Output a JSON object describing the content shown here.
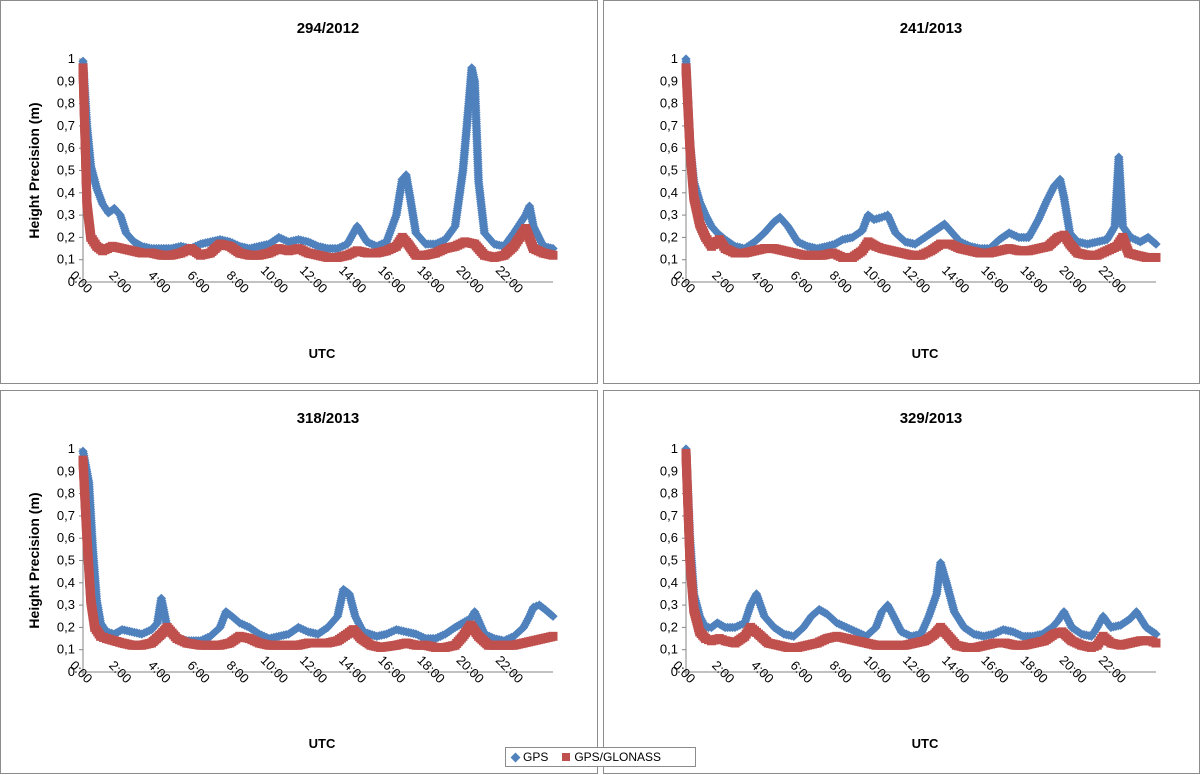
{
  "legend": {
    "gps_label": "GPS",
    "glonass_label": "GPS/GLONASS"
  },
  "colors": {
    "gps": "#4f81bd",
    "glonass": "#c0504d"
  },
  "chart_data": [
    {
      "type": "scatter",
      "title": "294/2012",
      "xlabel": "UTC",
      "ylabel": "Height Precision (m)",
      "ylim": [
        0,
        1
      ],
      "xlim": [
        0,
        24
      ],
      "yticks": [
        "0",
        "0,1",
        "0,2",
        "0,3",
        "0,4",
        "0,5",
        "0,6",
        "0,7",
        "0,8",
        "0,9",
        "1"
      ],
      "xticks": [
        "0:00",
        "2:00",
        "4:00",
        "6:00",
        "8:00",
        "10:00",
        "12:00",
        "14:00",
        "16:00",
        "18:00",
        "20:00",
        "22:00"
      ],
      "series": [
        {
          "name": "GPS",
          "x": [
            0,
            0.2,
            0.4,
            0.7,
            1,
            1.3,
            1.6,
            1.9,
            2.2,
            2.6,
            3,
            3.5,
            4,
            4.5,
            5,
            5.5,
            6,
            6.5,
            7,
            7.5,
            8,
            8.5,
            9,
            9.5,
            10,
            10.5,
            11,
            11.5,
            12,
            12.5,
            13,
            13.5,
            14,
            14.5,
            15,
            15.5,
            16,
            16.3,
            16.5,
            16.7,
            17,
            17.5,
            18,
            18.5,
            19,
            19.4,
            19.7,
            19.85,
            20,
            20.2,
            20.5,
            21,
            21.5,
            22,
            22.3,
            22.6,
            22.8,
            23,
            23.5,
            24
          ],
          "y": [
            0.99,
            0.7,
            0.52,
            0.42,
            0.35,
            0.31,
            0.33,
            0.3,
            0.22,
            0.18,
            0.16,
            0.15,
            0.15,
            0.15,
            0.16,
            0.15,
            0.17,
            0.18,
            0.19,
            0.18,
            0.16,
            0.15,
            0.16,
            0.17,
            0.2,
            0.18,
            0.19,
            0.18,
            0.16,
            0.15,
            0.15,
            0.17,
            0.25,
            0.18,
            0.16,
            0.18,
            0.3,
            0.46,
            0.48,
            0.38,
            0.22,
            0.17,
            0.17,
            0.19,
            0.25,
            0.5,
            0.8,
            0.96,
            0.9,
            0.45,
            0.22,
            0.17,
            0.16,
            0.22,
            0.26,
            0.3,
            0.34,
            0.25,
            0.16,
            0.15
          ]
        },
        {
          "name": "GPS/GLONASS",
          "x": [
            0,
            0.2,
            0.4,
            0.7,
            1,
            1.5,
            2,
            2.5,
            3,
            3.5,
            4,
            4.5,
            5,
            5.5,
            6,
            6.5,
            7,
            7.5,
            8,
            8.5,
            9,
            9.5,
            10,
            10.5,
            11,
            11.5,
            12,
            12.5,
            13,
            13.5,
            14,
            14.5,
            15,
            15.5,
            16,
            16.3,
            16.6,
            17,
            17.5,
            18,
            18.5,
            19,
            19.5,
            20,
            20.5,
            21,
            21.5,
            22,
            22.3,
            22.6,
            23,
            23.5,
            24
          ],
          "y": [
            0.96,
            0.35,
            0.2,
            0.16,
            0.14,
            0.16,
            0.15,
            0.14,
            0.13,
            0.13,
            0.12,
            0.12,
            0.13,
            0.15,
            0.12,
            0.13,
            0.17,
            0.16,
            0.13,
            0.12,
            0.12,
            0.13,
            0.15,
            0.14,
            0.15,
            0.13,
            0.12,
            0.11,
            0.11,
            0.12,
            0.14,
            0.13,
            0.13,
            0.14,
            0.16,
            0.2,
            0.17,
            0.12,
            0.12,
            0.13,
            0.15,
            0.16,
            0.18,
            0.17,
            0.12,
            0.11,
            0.12,
            0.16,
            0.2,
            0.24,
            0.15,
            0.13,
            0.12
          ]
        }
      ]
    },
    {
      "type": "scatter",
      "title": "241/2013",
      "xlabel": "UTC",
      "ylabel": "",
      "ylim": [
        0,
        1
      ],
      "xlim": [
        0,
        24
      ],
      "yticks": [
        "0",
        "0,1",
        "0,2",
        "0,3",
        "0,4",
        "0,5",
        "0,6",
        "0,7",
        "0,8",
        "0,9",
        "1"
      ],
      "xticks": [
        "0:00",
        "2:00",
        "4:00",
        "6:00",
        "8:00",
        "10:00",
        "12:00",
        "14:00",
        "16:00",
        "18:00",
        "20:00",
        "22:00"
      ],
      "series": [
        {
          "name": "GPS",
          "x": [
            0,
            0.2,
            0.4,
            0.7,
            1,
            1.3,
            1.6,
            2,
            2.5,
            3,
            3.5,
            4,
            4.5,
            4.8,
            5.2,
            5.7,
            6.2,
            6.7,
            7.2,
            7.6,
            8,
            8.5,
            9,
            9.3,
            9.6,
            10,
            10.3,
            10.7,
            11.2,
            11.7,
            12.2,
            12.7,
            13.2,
            13.6,
            14,
            14.5,
            15,
            15.5,
            16,
            16.5,
            17,
            17.5,
            18,
            18.4,
            18.8,
            19.1,
            19.3,
            19.6,
            20,
            20.5,
            21,
            21.5,
            21.9,
            22.1,
            22.3,
            22.7,
            23.2,
            23.6,
            24
          ],
          "y": [
            1,
            0.62,
            0.45,
            0.36,
            0.3,
            0.25,
            0.22,
            0.19,
            0.16,
            0.15,
            0.18,
            0.22,
            0.27,
            0.29,
            0.25,
            0.18,
            0.16,
            0.15,
            0.16,
            0.17,
            0.19,
            0.2,
            0.23,
            0.3,
            0.28,
            0.29,
            0.3,
            0.22,
            0.18,
            0.17,
            0.2,
            0.23,
            0.26,
            0.22,
            0.18,
            0.16,
            0.15,
            0.15,
            0.19,
            0.22,
            0.2,
            0.2,
            0.28,
            0.36,
            0.43,
            0.46,
            0.38,
            0.22,
            0.18,
            0.17,
            0.18,
            0.19,
            0.25,
            0.56,
            0.25,
            0.2,
            0.18,
            0.2,
            0.17
          ]
        },
        {
          "name": "GPS/GLONASS",
          "x": [
            0,
            0.2,
            0.4,
            0.7,
            1,
            1.3,
            1.7,
            2,
            2.5,
            3,
            3.5,
            4,
            4.5,
            5,
            5.5,
            6,
            6.5,
            7,
            7.5,
            8,
            8.5,
            9,
            9.3,
            9.7,
            10,
            10.5,
            11,
            11.5,
            12,
            12.5,
            13,
            13.5,
            14,
            14.5,
            15,
            15.5,
            16,
            16.5,
            17,
            17.5,
            18,
            18.5,
            19,
            19.3,
            19.6,
            20,
            20.5,
            21,
            21.5,
            22,
            22.3,
            22.6,
            23,
            23.5,
            24
          ],
          "y": [
            0.96,
            0.6,
            0.38,
            0.26,
            0.2,
            0.16,
            0.19,
            0.15,
            0.13,
            0.13,
            0.14,
            0.15,
            0.15,
            0.14,
            0.13,
            0.12,
            0.12,
            0.12,
            0.13,
            0.11,
            0.11,
            0.14,
            0.18,
            0.16,
            0.15,
            0.14,
            0.13,
            0.12,
            0.12,
            0.14,
            0.17,
            0.17,
            0.15,
            0.14,
            0.13,
            0.13,
            0.14,
            0.15,
            0.14,
            0.14,
            0.15,
            0.16,
            0.2,
            0.21,
            0.17,
            0.13,
            0.12,
            0.12,
            0.14,
            0.16,
            0.2,
            0.13,
            0.12,
            0.11,
            0.11
          ]
        }
      ]
    },
    {
      "type": "scatter",
      "title": "318/2013",
      "xlabel": "UTC",
      "ylabel": "Height Precision (m)",
      "ylim": [
        0,
        1
      ],
      "xlim": [
        0,
        24
      ],
      "yticks": [
        "0",
        "0,1",
        "0,2",
        "0,3",
        "0,4",
        "0,5",
        "0,6",
        "0,7",
        "0,8",
        "0,9",
        "1"
      ],
      "xticks": [
        "0:00",
        "2:00",
        "4:00",
        "6:00",
        "8:00",
        "10:00",
        "12:00",
        "14:00",
        "16:00",
        "18:00",
        "20:00",
        "22:00"
      ],
      "series": [
        {
          "name": "GPS",
          "x": [
            0,
            0.3,
            0.5,
            0.7,
            0.9,
            1.2,
            1.6,
            2,
            2.5,
            3,
            3.5,
            3.8,
            4,
            4.3,
            4.8,
            5.3,
            6,
            6.5,
            7,
            7.3,
            7.6,
            8,
            8.5,
            9,
            9.5,
            10,
            10.5,
            11,
            11.5,
            12,
            12.5,
            13,
            13.3,
            13.6,
            13.9,
            14.3,
            15,
            15.5,
            16,
            16.5,
            17,
            17.5,
            18,
            18.5,
            19,
            19.4,
            19.8,
            20,
            20.5,
            21,
            21.5,
            22,
            22.5,
            22.8,
            23,
            23.3,
            23.6,
            24
          ],
          "y": [
            0.99,
            0.85,
            0.55,
            0.32,
            0.22,
            0.18,
            0.17,
            0.19,
            0.18,
            0.17,
            0.19,
            0.22,
            0.33,
            0.2,
            0.15,
            0.14,
            0.14,
            0.16,
            0.2,
            0.27,
            0.25,
            0.22,
            0.2,
            0.17,
            0.15,
            0.16,
            0.17,
            0.2,
            0.18,
            0.17,
            0.2,
            0.25,
            0.37,
            0.35,
            0.25,
            0.18,
            0.16,
            0.17,
            0.19,
            0.18,
            0.17,
            0.15,
            0.15,
            0.17,
            0.2,
            0.22,
            0.24,
            0.27,
            0.17,
            0.15,
            0.14,
            0.16,
            0.2,
            0.25,
            0.29,
            0.3,
            0.28,
            0.25
          ]
        },
        {
          "name": "GPS/GLONASS",
          "x": [
            0,
            0.2,
            0.4,
            0.6,
            0.9,
            1.2,
            1.6,
            2,
            2.5,
            3,
            3.5,
            4,
            4.3,
            4.8,
            5.3,
            6,
            6.5,
            7,
            7.5,
            8,
            8.5,
            9,
            9.5,
            10,
            10.5,
            11,
            11.5,
            12,
            12.5,
            13,
            13.5,
            13.8,
            14.2,
            14.7,
            15.2,
            16,
            16.5,
            17,
            17.5,
            18,
            18.5,
            19,
            19.4,
            19.8,
            20.2,
            20.7,
            21.2,
            22,
            22.5,
            23,
            23.5,
            24
          ],
          "y": [
            0.95,
            0.6,
            0.32,
            0.2,
            0.16,
            0.15,
            0.14,
            0.13,
            0.12,
            0.12,
            0.13,
            0.17,
            0.2,
            0.15,
            0.13,
            0.12,
            0.12,
            0.12,
            0.13,
            0.16,
            0.15,
            0.13,
            0.12,
            0.12,
            0.12,
            0.12,
            0.13,
            0.13,
            0.13,
            0.14,
            0.17,
            0.19,
            0.15,
            0.12,
            0.11,
            0.12,
            0.13,
            0.12,
            0.12,
            0.11,
            0.11,
            0.12,
            0.16,
            0.21,
            0.16,
            0.12,
            0.12,
            0.12,
            0.13,
            0.14,
            0.15,
            0.16
          ]
        }
      ]
    },
    {
      "type": "scatter",
      "title": "329/2013",
      "xlabel": "UTC",
      "ylabel": "",
      "ylim": [
        0,
        1
      ],
      "xlim": [
        0,
        24
      ],
      "yticks": [
        "0",
        "0,1",
        "0,2",
        "0,3",
        "0,4",
        "0,5",
        "0,6",
        "0,7",
        "0,8",
        "0,9",
        "1"
      ],
      "xticks": [
        "0:00",
        "2:00",
        "4:00",
        "6:00",
        "8:00",
        "10:00",
        "12:00",
        "14:00",
        "16:00",
        "18:00",
        "20:00",
        "22:00"
      ],
      "series": [
        {
          "name": "GPS",
          "x": [
            0,
            0.2,
            0.4,
            0.7,
            1,
            1.3,
            1.6,
            2,
            2.5,
            3,
            3.3,
            3.6,
            4,
            4.5,
            5,
            5.5,
            6,
            6.4,
            6.8,
            7.2,
            7.7,
            8.2,
            8.7,
            9.2,
            9.7,
            10,
            10.3,
            10.6,
            11,
            11.5,
            12,
            12.4,
            12.8,
            13,
            13.3,
            13.7,
            14.2,
            14.7,
            15.2,
            15.7,
            16.2,
            16.7,
            17.2,
            17.7,
            18.2,
            18.7,
            19,
            19.3,
            19.7,
            20.2,
            20.7,
            21,
            21.3,
            21.7,
            22.2,
            22.7,
            23,
            23.5,
            24
          ],
          "y": [
            1,
            0.6,
            0.35,
            0.25,
            0.2,
            0.2,
            0.22,
            0.2,
            0.2,
            0.22,
            0.3,
            0.35,
            0.25,
            0.2,
            0.17,
            0.16,
            0.2,
            0.25,
            0.28,
            0.26,
            0.22,
            0.2,
            0.18,
            0.16,
            0.2,
            0.27,
            0.3,
            0.25,
            0.18,
            0.16,
            0.17,
            0.25,
            0.35,
            0.49,
            0.4,
            0.27,
            0.2,
            0.17,
            0.16,
            0.17,
            0.19,
            0.18,
            0.16,
            0.16,
            0.17,
            0.2,
            0.23,
            0.27,
            0.2,
            0.17,
            0.16,
            0.2,
            0.25,
            0.2,
            0.21,
            0.24,
            0.27,
            0.2,
            0.17
          ]
        },
        {
          "name": "GPS/GLONASS",
          "x": [
            0,
            0.2,
            0.4,
            0.7,
            1,
            1.3,
            1.7,
            2,
            2.5,
            3,
            3.3,
            3.7,
            4.2,
            4.7,
            5.2,
            5.7,
            6.2,
            6.7,
            7.2,
            7.7,
            8.2,
            8.7,
            9.2,
            9.7,
            10.2,
            10.7,
            11.2,
            11.7,
            12.2,
            12.7,
            13,
            13.4,
            13.8,
            14.3,
            14.8,
            15.3,
            15.8,
            16.3,
            16.8,
            17.3,
            17.8,
            18.3,
            18.8,
            19.2,
            19.7,
            20.2,
            20.7,
            21,
            21.3,
            21.7,
            22.2,
            22.7,
            23.2,
            23.7,
            24
          ],
          "y": [
            0.98,
            0.5,
            0.28,
            0.18,
            0.15,
            0.14,
            0.15,
            0.14,
            0.13,
            0.16,
            0.2,
            0.17,
            0.13,
            0.12,
            0.11,
            0.11,
            0.12,
            0.13,
            0.15,
            0.16,
            0.15,
            0.14,
            0.13,
            0.12,
            0.12,
            0.12,
            0.12,
            0.13,
            0.14,
            0.17,
            0.2,
            0.16,
            0.12,
            0.11,
            0.11,
            0.12,
            0.13,
            0.13,
            0.12,
            0.12,
            0.13,
            0.14,
            0.17,
            0.18,
            0.14,
            0.12,
            0.11,
            0.12,
            0.16,
            0.13,
            0.12,
            0.13,
            0.14,
            0.14,
            0.13
          ]
        }
      ]
    }
  ]
}
